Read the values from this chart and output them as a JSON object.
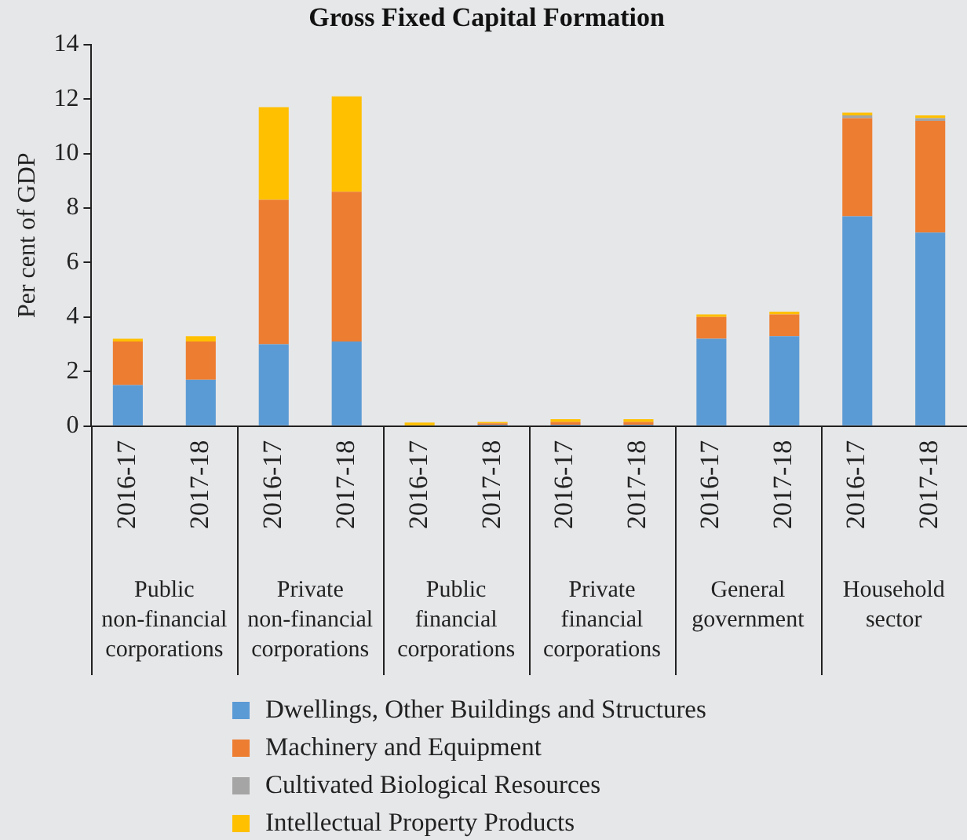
{
  "chart_data": {
    "type": "bar",
    "title": "Gross Fixed Capital Formation",
    "ylabel": "Per cent of GDP",
    "categories": [
      "2016-17",
      "2017-18",
      "2016-17",
      "2017-18",
      "2016-17",
      "2017-18",
      "2016-17",
      "2017-18",
      "2016-17",
      "2017-18",
      "2016-17",
      "2017-18"
    ],
    "series": [
      {
        "name": "Dwellings, Other Buildings and Structures",
        "color": "#5b9bd5",
        "values": [
          1.5,
          1.7,
          3.0,
          3.1,
          null,
          0.05,
          0.05,
          0.05,
          3.2,
          3.3,
          7.7,
          7.1
        ]
      },
      {
        "name": "Machinery and Equipment",
        "color": "#ed7d31",
        "values": [
          1.6,
          1.4,
          5.3,
          5.5,
          0.03,
          0.05,
          0.1,
          0.1,
          0.8,
          0.8,
          3.6,
          4.1
        ]
      },
      {
        "name": "Cultivated Biological Resources",
        "color": "#a5a5a5",
        "values": [
          0,
          0,
          0,
          0,
          0,
          0,
          0,
          0,
          null,
          null,
          0.1,
          0.1
        ]
      },
      {
        "name": "Intellectual Property Products",
        "color": "#ffc000",
        "values": [
          0.1,
          0.2,
          3.4,
          3.5,
          0.1,
          0.05,
          0.1,
          0.1,
          0.1,
          0.1,
          0.1,
          0.1
        ]
      }
    ],
    "stacked": true,
    "ylim": [
      0,
      14
    ],
    "yticks": [
      0,
      2,
      4,
      6,
      8,
      10,
      12,
      14
    ],
    "grid": false,
    "legend": "bottom",
    "annotations": [
      "Public non-financial corporations",
      "Private non-financial corporations",
      "Public financial corporations",
      "Private financial corporations",
      "General government",
      "Household sector"
    ]
  }
}
